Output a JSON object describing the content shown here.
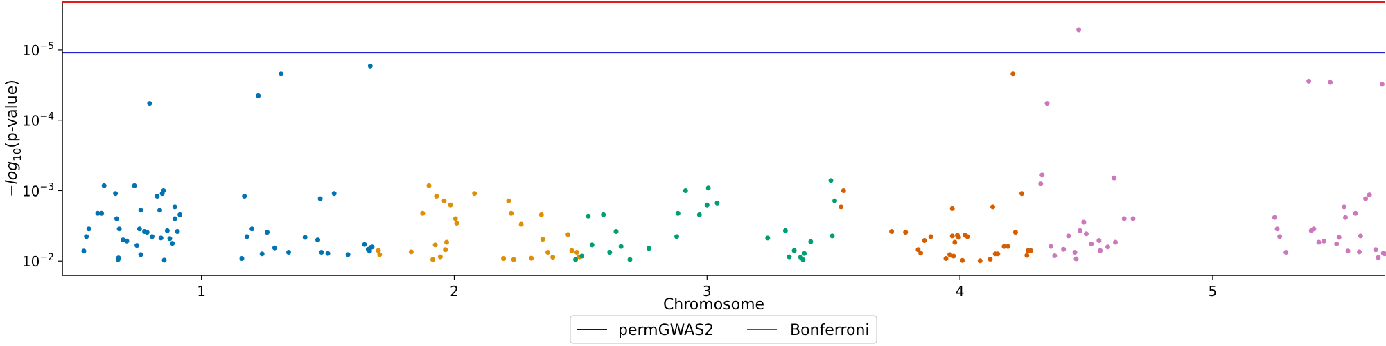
{
  "chart_data": {
    "type": "scatter",
    "title": "",
    "xlabel": "Chromosome",
    "ylabel_prefix": "−",
    "ylabel_log": "log",
    "ylabel_sub": "10",
    "ylabel_suffix": "(p-value)",
    "y_scale": "log",
    "y_inverted": true,
    "ylim": [
      0.016,
      2.2e-06
    ],
    "xlim": [
      0.45,
      5.68
    ],
    "x_ticks": [
      {
        "value": 1,
        "label": "1"
      },
      {
        "value": 2,
        "label": "2"
      },
      {
        "value": 3,
        "label": "3"
      },
      {
        "value": 4,
        "label": "4"
      },
      {
        "value": 5,
        "label": "5"
      }
    ],
    "y_ticks": [
      {
        "value": 0.01,
        "base": "10",
        "exp": "−2"
      },
      {
        "value": 0.001,
        "base": "10",
        "exp": "−3"
      },
      {
        "value": 0.0001,
        "base": "10",
        "exp": "−4"
      },
      {
        "value": 1e-05,
        "base": "10",
        "exp": "−5"
      }
    ],
    "grid": false,
    "legend_position": "bottom-center",
    "thresholds": [
      {
        "name": "permGWAS2",
        "value": 1.1e-05,
        "color": "#0000cc"
      },
      {
        "name": "Bonferroni",
        "value": 2.1e-06,
        "color": "#e31a1c"
      }
    ],
    "series": [
      {
        "color": "#0173b2",
        "points": [
          [
            0.535,
            0.0072
          ],
          [
            0.545,
            0.0045
          ],
          [
            0.555,
            0.0035
          ],
          [
            0.59,
            0.0021
          ],
          [
            0.605,
            0.0021
          ],
          [
            0.615,
            0.00085
          ],
          [
            0.66,
            0.0011
          ],
          [
            0.665,
            0.0025
          ],
          [
            0.67,
            0.0095
          ],
          [
            0.672,
            0.009
          ],
          [
            0.675,
            0.0035
          ],
          [
            0.69,
            0.005
          ],
          [
            0.705,
            0.0052
          ],
          [
            0.735,
            0.00085
          ],
          [
            0.745,
            0.006
          ],
          [
            0.755,
            0.0035
          ],
          [
            0.76,
            0.0081
          ],
          [
            0.76,
            0.0019
          ],
          [
            0.775,
            0.0038
          ],
          [
            0.785,
            0.0039
          ],
          [
            0.795,
            5.8e-05
          ],
          [
            0.805,
            0.0045
          ],
          [
            0.825,
            0.0012
          ],
          [
            0.835,
            0.0019
          ],
          [
            0.84,
            0.0047
          ],
          [
            0.845,
            0.0011
          ],
          [
            0.85,
            0.001
          ],
          [
            0.853,
            0.0097
          ],
          [
            0.865,
            0.0037
          ],
          [
            0.875,
            0.0048
          ],
          [
            0.885,
            0.0056
          ],
          [
            0.895,
            0.0025
          ],
          [
            0.895,
            0.0017
          ],
          [
            0.905,
            0.0038
          ],
          [
            0.915,
            0.0022
          ],
          [
            1.16,
            0.0092
          ],
          [
            1.17,
            0.0012
          ],
          [
            1.18,
            0.0045
          ],
          [
            1.2,
            0.0035
          ],
          [
            1.225,
            4.5e-05
          ],
          [
            1.24,
            0.0079
          ],
          [
            1.26,
            0.0039
          ],
          [
            1.29,
            0.0065
          ],
          [
            1.315,
            2.2e-05
          ],
          [
            1.345,
            0.0075
          ],
          [
            1.41,
            0.0046
          ],
          [
            1.46,
            0.005
          ],
          [
            1.47,
            0.0013
          ],
          [
            1.475,
            0.0075
          ],
          [
            1.5,
            0.0078
          ],
          [
            1.525,
            0.0011
          ],
          [
            1.58,
            0.0081
          ],
          [
            1.645,
            0.0058
          ],
          [
            1.66,
            0.0068
          ],
          [
            1.665,
            0.0072
          ],
          [
            1.668,
            1.7e-05
          ],
          [
            1.67,
            0.0064
          ],
          [
            1.675,
            0.0063
          ]
        ]
      },
      {
        "color": "#de8f05",
        "points": [
          [
            1.7,
            0.0071
          ],
          [
            1.705,
            0.0081
          ],
          [
            1.83,
            0.0074
          ],
          [
            1.875,
            0.0021
          ],
          [
            1.9,
            0.00085
          ],
          [
            1.915,
            0.0095
          ],
          [
            1.925,
            0.0059
          ],
          [
            1.93,
            0.0012
          ],
          [
            1.945,
            0.0087
          ],
          [
            1.96,
            0.0014
          ],
          [
            1.965,
            0.0069
          ],
          [
            1.97,
            0.0054
          ],
          [
            1.985,
            0.0016
          ],
          [
            2.005,
            0.0025
          ],
          [
            2.01,
            0.0029
          ],
          [
            2.08,
            0.0011
          ],
          [
            2.195,
            0.0092
          ],
          [
            2.215,
            0.0014
          ],
          [
            2.225,
            0.0021
          ],
          [
            2.235,
            0.0095
          ],
          [
            2.265,
            0.003
          ],
          [
            2.305,
            0.0091
          ],
          [
            2.345,
            0.0022
          ],
          [
            2.35,
            0.0049
          ],
          [
            2.37,
            0.0075
          ],
          [
            2.39,
            0.0088
          ],
          [
            2.45,
            0.0042
          ],
          [
            2.465,
            0.0071
          ],
          [
            2.485,
            0.0075
          ],
          [
            2.495,
            0.0087
          ]
        ]
      },
      {
        "color": "#029e73",
        "points": [
          [
            2.48,
            0.0095
          ],
          [
            2.505,
            0.0085
          ],
          [
            2.53,
            0.0023
          ],
          [
            2.545,
            0.0059
          ],
          [
            2.59,
            0.0022
          ],
          [
            2.615,
            0.0075
          ],
          [
            2.64,
            0.0038
          ],
          [
            2.66,
            0.0062
          ],
          [
            2.695,
            0.0095
          ],
          [
            2.77,
            0.0066
          ],
          [
            2.88,
            0.0045
          ],
          [
            2.885,
            0.0021
          ],
          [
            2.915,
            0.001
          ],
          [
            2.97,
            0.0022
          ],
          [
            3.0,
            0.0016
          ],
          [
            3.005,
            0.00092
          ],
          [
            3.04,
            0.0015
          ],
          [
            3.24,
            0.0047
          ],
          [
            3.31,
            0.0037
          ],
          [
            3.325,
            0.0087
          ],
          [
            3.345,
            0.0071
          ],
          [
            3.37,
            0.0088
          ],
          [
            3.38,
            0.0096
          ],
          [
            3.385,
            0.0078
          ],
          [
            3.41,
            0.0053
          ],
          [
            3.49,
            0.00072
          ],
          [
            3.495,
            0.0044
          ],
          [
            3.505,
            0.0014
          ]
        ]
      },
      {
        "color": "#d55e00",
        "points": [
          [
            3.53,
            0.0017
          ],
          [
            3.54,
            0.001
          ],
          [
            3.73,
            0.0038
          ],
          [
            3.785,
            0.0039
          ],
          [
            3.835,
            0.0069
          ],
          [
            3.845,
            0.0077
          ],
          [
            3.86,
            0.0051
          ],
          [
            3.885,
            0.0045
          ],
          [
            3.945,
            0.0092
          ],
          [
            3.96,
            0.0081
          ],
          [
            3.97,
            0.0044
          ],
          [
            3.97,
            0.0018
          ],
          [
            3.975,
            0.0085
          ],
          [
            3.98,
            0.0054
          ],
          [
            3.99,
            0.0043
          ],
          [
            3.995,
            0.0046
          ],
          [
            4.01,
            0.0098
          ],
          [
            4.02,
            0.0043
          ],
          [
            4.03,
            0.0045
          ],
          [
            4.08,
            0.0099
          ],
          [
            4.12,
            0.0094
          ],
          [
            4.13,
            0.0017
          ],
          [
            4.14,
            0.0079
          ],
          [
            4.15,
            0.0079
          ],
          [
            4.175,
            0.0062
          ],
          [
            4.19,
            0.0062
          ],
          [
            4.21,
            2.2e-05
          ],
          [
            4.22,
            0.0039
          ],
          [
            4.245,
            0.0011
          ],
          [
            4.265,
            0.0083
          ],
          [
            4.27,
            0.0071
          ],
          [
            4.28,
            0.0071
          ]
        ]
      },
      {
        "color": "#cc78bc",
        "points": [
          [
            4.32,
            0.0008
          ],
          [
            4.325,
            0.0006
          ],
          [
            4.345,
            5.8e-05
          ],
          [
            4.36,
            0.0062
          ],
          [
            4.375,
            0.0084
          ],
          [
            4.41,
            0.0068
          ],
          [
            4.43,
            0.0044
          ],
          [
            4.455,
            0.0075
          ],
          [
            4.46,
            0.0093
          ],
          [
            4.47,
            5.2e-06
          ],
          [
            4.475,
            0.0037
          ],
          [
            4.49,
            0.0028
          ],
          [
            4.5,
            0.0041
          ],
          [
            4.52,
            0.0057
          ],
          [
            4.55,
            0.0051
          ],
          [
            4.555,
            0.0071
          ],
          [
            4.585,
            0.0063
          ],
          [
            4.61,
            0.00066
          ],
          [
            4.615,
            0.0054
          ],
          [
            4.65,
            0.0025
          ],
          [
            4.685,
            0.0025
          ],
          [
            5.245,
            0.0024
          ],
          [
            5.255,
            0.0035
          ],
          [
            5.265,
            0.0045
          ],
          [
            5.29,
            0.0075
          ],
          [
            5.38,
            2.8e-05
          ],
          [
            5.39,
            0.0037
          ],
          [
            5.4,
            0.0035
          ],
          [
            5.42,
            0.0054
          ],
          [
            5.44,
            0.0052
          ],
          [
            5.465,
            2.9e-05
          ],
          [
            5.49,
            0.0057
          ],
          [
            5.5,
            0.0046
          ],
          [
            5.52,
            0.0017
          ],
          [
            5.525,
            0.0024
          ],
          [
            5.535,
            0.0072
          ],
          [
            5.565,
            0.0021
          ],
          [
            5.58,
            0.0074
          ],
          [
            5.585,
            0.0044
          ],
          [
            5.605,
            0.0013
          ],
          [
            5.62,
            0.00115
          ],
          [
            5.645,
            0.0069
          ],
          [
            5.655,
            0.0089
          ],
          [
            5.67,
            3.1e-05
          ],
          [
            5.675,
            0.0077
          ],
          [
            5.68,
            0.0079
          ]
        ]
      }
    ]
  }
}
